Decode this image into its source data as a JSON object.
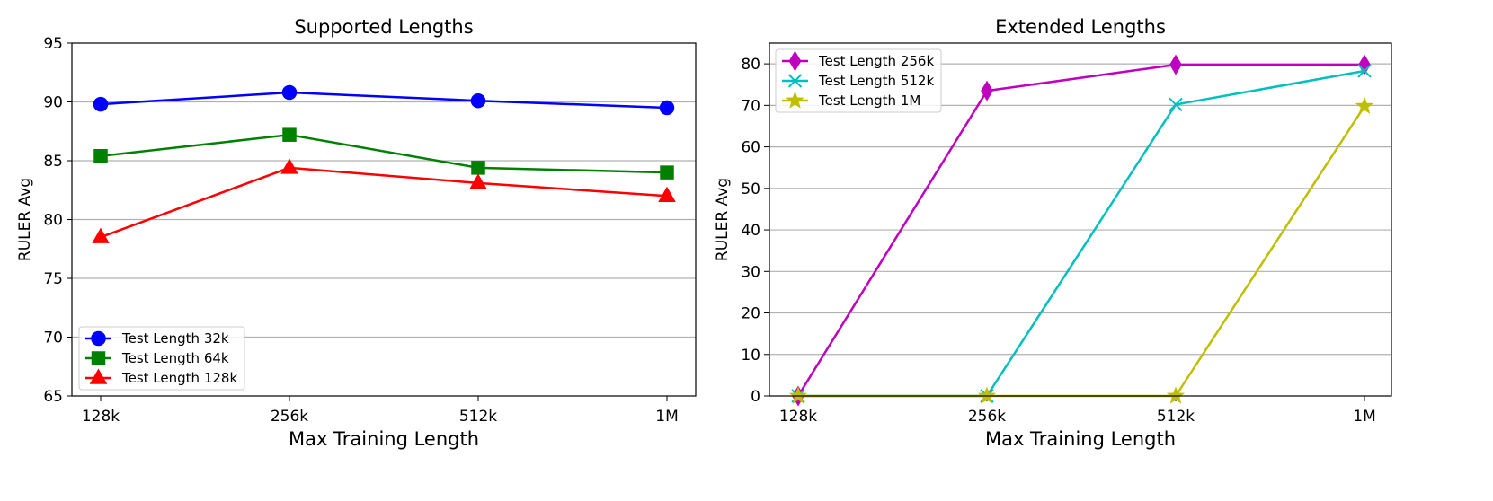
{
  "chart_data": [
    {
      "type": "line",
      "title": "Supported Lengths",
      "xlabel": "Max Training Length",
      "ylabel": "RULER Avg",
      "categories": [
        "128k",
        "256k",
        "512k",
        "1M"
      ],
      "ylim": [
        65,
        95
      ],
      "yticks": [
        "65",
        "70",
        "75",
        "80",
        "85",
        "90",
        "95"
      ],
      "grid": "horizontal",
      "legend_position": "lower-left",
      "series": [
        {
          "name": "Test Length 32k",
          "values": [
            89.8,
            90.8,
            90.1,
            89.5
          ],
          "color": "#0000ff",
          "marker": "circle"
        },
        {
          "name": "Test Length 64k",
          "values": [
            85.4,
            87.2,
            84.4,
            84.0
          ],
          "color": "#008000",
          "marker": "square"
        },
        {
          "name": "Test Length 128k",
          "values": [
            78.5,
            84.4,
            83.1,
            82.0
          ],
          "color": "#ff0000",
          "marker": "triangle"
        }
      ]
    },
    {
      "type": "line",
      "title": "Extended Lengths",
      "xlabel": "Max Training Length",
      "ylabel": "RULER Avg",
      "categories": [
        "128k",
        "256k",
        "512k",
        "1M"
      ],
      "ylim": [
        0,
        85
      ],
      "yticks": [
        "0",
        "10",
        "20",
        "30",
        "40",
        "50",
        "60",
        "70",
        "80"
      ],
      "grid": "horizontal",
      "legend_position": "upper-left",
      "series": [
        {
          "name": "Test Length 256k",
          "values": [
            0,
            73.5,
            79.8,
            79.8
          ],
          "color": "#bf00bf",
          "marker": "diamond"
        },
        {
          "name": "Test Length 512k",
          "values": [
            0,
            0,
            70.2,
            78.3
          ],
          "color": "#00bfbf",
          "marker": "x"
        },
        {
          "name": "Test Length 1M",
          "values": [
            0,
            0,
            0,
            69.8
          ],
          "color": "#bfbf00",
          "marker": "star"
        }
      ]
    }
  ]
}
